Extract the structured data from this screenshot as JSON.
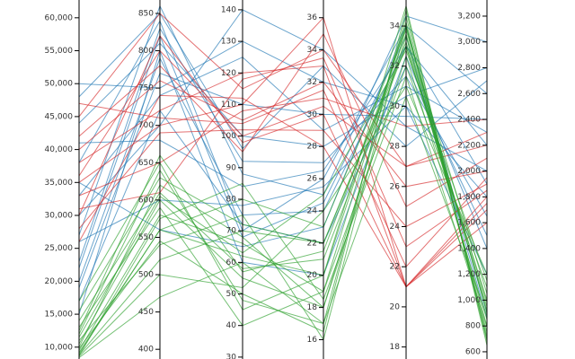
{
  "chart_data": {
    "type": "parallel",
    "axes": [
      {
        "lim": [
          8200,
          62700
        ],
        "ticks": [
          {
            "value": 10000,
            "label": "10,000"
          },
          {
            "value": 15000,
            "label": "15,000"
          },
          {
            "value": 20000,
            "label": "20,000"
          },
          {
            "value": 25000,
            "label": "25,000"
          },
          {
            "value": 30000,
            "label": "30,000"
          },
          {
            "value": 35000,
            "label": "35,000"
          },
          {
            "value": 40000,
            "label": "40,000"
          },
          {
            "value": 45000,
            "label": "45,000"
          },
          {
            "value": 50000,
            "label": "50,000"
          },
          {
            "value": 55000,
            "label": "55,000"
          },
          {
            "value": 60000,
            "label": "60,000"
          }
        ]
      },
      {
        "lim": [
          387,
          868
        ],
        "ticks": [
          400,
          450,
          500,
          550,
          600,
          650,
          700,
          750,
          800,
          850
        ]
      },
      {
        "lim": [
          29.4,
          143.1
        ],
        "ticks": [
          30,
          40,
          50,
          60,
          70,
          80,
          90,
          100,
          110,
          120,
          130,
          140
        ]
      },
      {
        "lim": [
          14.8,
          37.1
        ],
        "ticks": [
          16,
          18,
          20,
          22,
          24,
          26,
          28,
          30,
          32,
          34,
          36
        ]
      },
      {
        "lim": [
          17.4,
          35.3
        ],
        "ticks": [
          18,
          20,
          22,
          24,
          26,
          28,
          30,
          32,
          34
        ]
      },
      {
        "lim": [
          544,
          3325
        ],
        "ticks": [
          600,
          800,
          {
            "value": 1000,
            "label": "1,000"
          },
          {
            "value": 1200,
            "label": "1,200"
          },
          {
            "value": 1400,
            "label": "1,400"
          },
          {
            "value": 1600,
            "label": "1,600"
          },
          {
            "value": 1800,
            "label": "1,800"
          },
          {
            "value": 2000,
            "label": "2,000"
          },
          {
            "value": 2200,
            "label": "2,200"
          },
          {
            "value": 2400,
            "label": "2,400"
          },
          {
            "value": 2600,
            "label": "2,600"
          },
          {
            "value": 2800,
            "label": "2,800"
          },
          {
            "value": 3000,
            "label": "3,000"
          },
          {
            "value": 3200,
            "label": "3,200"
          }
        ]
      }
    ],
    "groups": [
      {
        "color": "#1f77b4",
        "lines": [
          [
            38000,
            840,
            70,
            26,
            34,
            2600
          ],
          [
            20000,
            790,
            75,
            24,
            33,
            2200
          ],
          [
            50000,
            750,
            130,
            32,
            30,
            1800
          ],
          [
            27000,
            860,
            88,
            25,
            34.5,
            3000
          ],
          [
            17000,
            720,
            72,
            22,
            32,
            1500
          ],
          [
            44000,
            810,
            100,
            28,
            30.5,
            2800
          ],
          [
            30000,
            700,
            140,
            34,
            29,
            2000
          ],
          [
            23000,
            830,
            92,
            27,
            31.5,
            1650
          ],
          [
            35000,
            560,
            65,
            23,
            34,
            900
          ],
          [
            19000,
            770,
            110,
            30,
            29.5,
            2400
          ],
          [
            41000,
            680,
            84,
            26.5,
            33,
            1900
          ],
          [
            15000,
            800,
            60,
            20,
            32.5,
            1400
          ],
          [
            48000,
            850,
            96,
            33,
            28,
            2700
          ],
          [
            26000,
            600,
            78,
            25.5,
            30,
            1200
          ],
          [
            33000,
            740,
            125,
            29,
            31,
            2300
          ],
          [
            22000,
            820,
            68,
            24.5,
            33.5,
            860
          ]
        ]
      },
      {
        "color": "#d62728",
        "lines": [
          [
            35000,
            700,
            110,
            36,
            21,
            1800
          ],
          [
            40000,
            760,
            105,
            32,
            26,
            2000
          ],
          [
            30000,
            820,
            98,
            30,
            21,
            1700
          ],
          [
            45000,
            850,
            115,
            34,
            27,
            2200
          ],
          [
            28000,
            690,
            102,
            29,
            24,
            1900
          ],
          [
            38000,
            720,
            120,
            33,
            21,
            1600
          ],
          [
            33000,
            650,
            108,
            31,
            29,
            2400
          ],
          [
            42000,
            780,
            95,
            35,
            25,
            2100
          ],
          [
            26000,
            740,
            112,
            28,
            21,
            1750
          ],
          [
            36000,
            800,
            100,
            30.5,
            27,
            2300
          ],
          [
            31000,
            610,
            118,
            33.5,
            23,
            1850
          ],
          [
            47000,
            710,
            104,
            31.5,
            22,
            1950
          ]
        ]
      },
      {
        "color": "#2ca02c",
        "lines": [
          [
            9000,
            560,
            62,
            20,
            34,
            900
          ],
          [
            10500,
            600,
            55,
            18,
            33.5,
            800
          ],
          [
            8800,
            520,
            70,
            22,
            33,
            1000
          ],
          [
            12000,
            640,
            48,
            17,
            34.5,
            700
          ],
          [
            9500,
            580,
            66,
            19,
            32,
            1100
          ],
          [
            14000,
            610,
            58,
            21,
            33,
            950
          ],
          [
            11000,
            540,
            75,
            16,
            34,
            750
          ],
          [
            8600,
            500,
            52,
            24,
            31,
            1200
          ],
          [
            17000,
            650,
            45,
            20,
            35,
            650
          ],
          [
            10000,
            620,
            68,
            18,
            32.5,
            850
          ],
          [
            9200,
            560,
            80,
            23,
            33.8,
            1050
          ],
          [
            13000,
            590,
            40,
            19,
            34.2,
            720
          ],
          [
            8400,
            470,
            60,
            17,
            30.5,
            880
          ],
          [
            15500,
            630,
            72,
            22,
            33.2,
            980
          ],
          [
            9800,
            545,
            50,
            16.5,
            34.8,
            680
          ],
          [
            11500,
            605,
            63,
            25,
            32.8,
            1150
          ],
          [
            8700,
            575,
            85,
            18.5,
            31.5,
            790
          ],
          [
            12500,
            660,
            57,
            21.5,
            33.6,
            920
          ]
        ]
      }
    ]
  }
}
